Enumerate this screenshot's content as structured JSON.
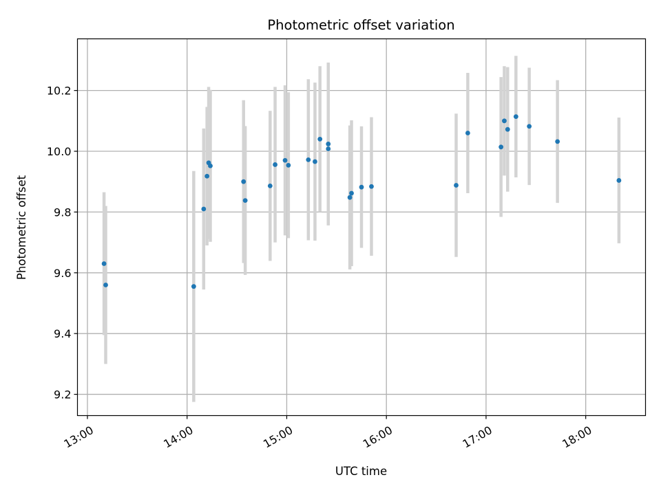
{
  "chart_data": {
    "type": "scatter",
    "title": "Photometric offset variation",
    "xlabel": "UTC time",
    "ylabel": "Photometric offset",
    "x_ticks": [
      "13:00",
      "14:00",
      "15:00",
      "16:00",
      "17:00",
      "18:00"
    ],
    "y_ticks": [
      "9.2",
      "9.4",
      "9.6",
      "9.8",
      "10.0",
      "10.2"
    ],
    "xlim": [
      "12:54",
      "18:36"
    ],
    "ylim": [
      9.13,
      10.37
    ],
    "grid": true,
    "error_bars": true,
    "colors": {
      "points": "#1f77b4",
      "error_bars": "#d3d3d3",
      "grid": "#b0b0b0"
    },
    "points": [
      {
        "x": "13:10",
        "y": 9.63,
        "err": 0.235
      },
      {
        "x": "13:11",
        "y": 9.56,
        "err": 0.26
      },
      {
        "x": "14:04",
        "y": 9.555,
        "err": 0.38
      },
      {
        "x": "14:10",
        "y": 9.81,
        "err": 0.265
      },
      {
        "x": "14:12",
        "y": 9.918,
        "err": 0.228
      },
      {
        "x": "14:13",
        "y": 9.962,
        "err": 0.25
      },
      {
        "x": "14:14",
        "y": 9.952,
        "err": 0.25
      },
      {
        "x": "14:34",
        "y": 9.9,
        "err": 0.268
      },
      {
        "x": "14:35",
        "y": 9.838,
        "err": 0.245
      },
      {
        "x": "14:50",
        "y": 9.886,
        "err": 0.247
      },
      {
        "x": "14:53",
        "y": 9.956,
        "err": 0.256
      },
      {
        "x": "14:59",
        "y": 9.97,
        "err": 0.247
      },
      {
        "x": "15:01",
        "y": 9.954,
        "err": 0.24
      },
      {
        "x": "15:13",
        "y": 9.972,
        "err": 0.265
      },
      {
        "x": "15:17",
        "y": 9.966,
        "err": 0.26
      },
      {
        "x": "15:20",
        "y": 10.04,
        "err": 0.24
      },
      {
        "x": "15:25",
        "y": 10.008,
        "err": 0.25
      },
      {
        "x": "15:25",
        "y": 10.024,
        "err": 0.268
      },
      {
        "x": "15:38",
        "y": 9.848,
        "err": 0.237
      },
      {
        "x": "15:39",
        "y": 9.862,
        "err": 0.24
      },
      {
        "x": "15:45",
        "y": 9.882,
        "err": 0.2
      },
      {
        "x": "15:51",
        "y": 9.884,
        "err": 0.228
      },
      {
        "x": "16:42",
        "y": 9.888,
        "err": 0.236
      },
      {
        "x": "16:49",
        "y": 10.06,
        "err": 0.198
      },
      {
        "x": "17:09",
        "y": 10.014,
        "err": 0.23
      },
      {
        "x": "17:11",
        "y": 10.1,
        "err": 0.18
      },
      {
        "x": "17:13",
        "y": 10.072,
        "err": 0.205
      },
      {
        "x": "17:18",
        "y": 10.114,
        "err": 0.2
      },
      {
        "x": "17:26",
        "y": 10.082,
        "err": 0.193
      },
      {
        "x": "17:43",
        "y": 10.032,
        "err": 0.202
      },
      {
        "x": "18:20",
        "y": 9.904,
        "err": 0.207
      }
    ]
  }
}
